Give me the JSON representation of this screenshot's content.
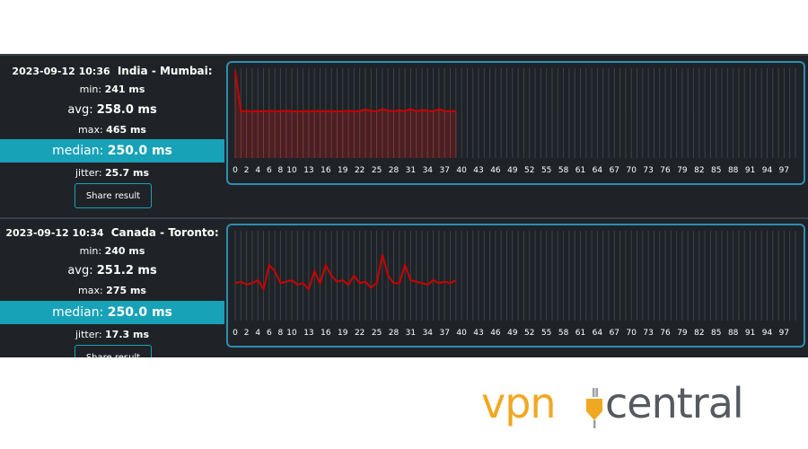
{
  "results": [
    {
      "timestamp": "2023-09-12 10:36",
      "location": "India - Mumbai:",
      "min_label": "min:",
      "min_value": "241 ms",
      "avg_label": "avg:",
      "avg_value": "258.0 ms",
      "max_label": "max:",
      "max_value": "465 ms",
      "median_label": "median:",
      "median_value": "250.0 ms",
      "jitter_label": "jitter:",
      "jitter_value": "25.7 ms",
      "share_label": "Share result"
    },
    {
      "timestamp": "2023-09-12 10:34",
      "location": "Canada - Toronto:",
      "min_label": "min:",
      "min_value": "240 ms",
      "avg_label": "avg:",
      "avg_value": "251.2 ms",
      "max_label": "max:",
      "max_value": "275 ms",
      "median_label": "median:",
      "median_value": "250.0 ms",
      "jitter_label": "jitter:",
      "jitter_value": "17.3 ms",
      "share_label": "Share result"
    }
  ],
  "chart_data": [
    {
      "type": "line",
      "series_color": "#cc0000",
      "fill": true,
      "x_ticks": [
        "0",
        "2",
        "4",
        "6",
        "8",
        "10",
        "13",
        "16",
        "19",
        "22",
        "25",
        "28",
        "31",
        "34",
        "37",
        "40",
        "43",
        "46",
        "49",
        "52",
        "55",
        "58",
        "61",
        "64",
        "67",
        "70",
        "73",
        "76",
        "79",
        "82",
        "85",
        "88",
        "91",
        "94",
        "97"
      ],
      "x_max": 99,
      "y_range": [
        0,
        480
      ],
      "values": [
        465,
        250,
        252,
        250,
        251,
        250,
        252,
        251,
        250,
        253,
        250,
        249,
        250,
        251,
        250,
        252,
        250,
        251,
        249,
        250,
        252,
        250,
        251,
        260,
        252,
        250,
        262,
        253,
        251,
        255,
        252,
        262,
        250,
        258,
        252,
        250,
        262,
        251,
        250,
        252
      ]
    },
    {
      "type": "line",
      "series_color": "#cc0000",
      "fill": false,
      "x_ticks": [
        "0",
        "2",
        "4",
        "6",
        "8",
        "10",
        "13",
        "16",
        "19",
        "22",
        "25",
        "28",
        "31",
        "34",
        "37",
        "40",
        "43",
        "46",
        "49",
        "52",
        "55",
        "58",
        "61",
        "64",
        "67",
        "70",
        "73",
        "76",
        "79",
        "82",
        "85",
        "88",
        "91",
        "94",
        "97"
      ],
      "x_max": 99,
      "y_range": [
        225,
        285
      ],
      "values": [
        250,
        251,
        249,
        250,
        252,
        246,
        262,
        258,
        250,
        251,
        252,
        249,
        250,
        246,
        258,
        250,
        262,
        255,
        251,
        252,
        249,
        255,
        250,
        251,
        247,
        250,
        269,
        255,
        250,
        250,
        262,
        252,
        251,
        250,
        249,
        252,
        250,
        251,
        250,
        252
      ]
    }
  ],
  "brand": {
    "part1": "vpn",
    "part2": "central",
    "accent": "#f0a823",
    "text_color": "#555a60"
  }
}
